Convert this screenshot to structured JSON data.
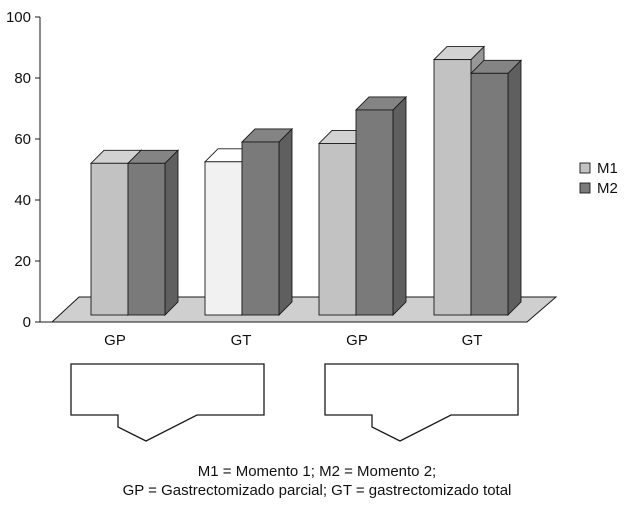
{
  "chart_data": {
    "type": "bar",
    "categories": [
      "GP",
      "GT",
      "GP",
      "GT"
    ],
    "series": [
      {
        "name": "M1",
        "values": [
          54,
          54.5,
          60.5,
          88
        ]
      },
      {
        "name": "M2",
        "values": [
          54,
          61,
          71.5,
          83.5
        ]
      }
    ],
    "ylim": [
      0,
      100
    ],
    "yticks": [
      0,
      20,
      40,
      60,
      80,
      100
    ],
    "grid": false,
    "legend_position": "right",
    "bar_style": "3d",
    "colors": {
      "M1": "#c2c2c2",
      "M1_highlight": "#f1f1f1",
      "M2": "#7a7a7a",
      "floor": "#cfcfcf",
      "outline": "#1a1a1a"
    }
  },
  "caption": {
    "line1": "M1 = Momento 1; M2 = Momento 2;",
    "line2": "GP = Gastrectomizado parcial; GT = gastrectomizado total"
  }
}
